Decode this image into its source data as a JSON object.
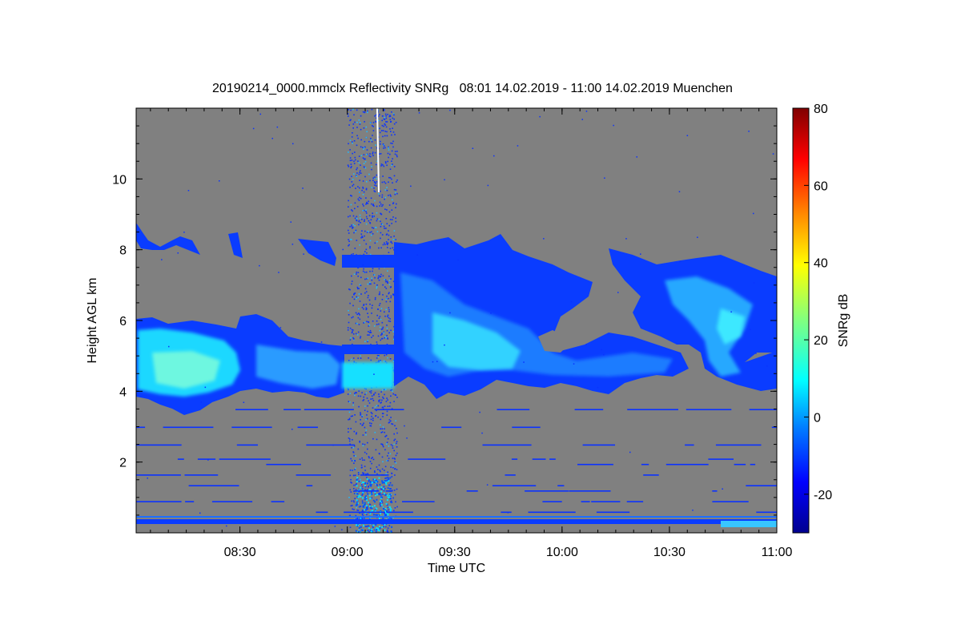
{
  "chart_data": {
    "type": "heatmap",
    "title": "20190214_0000.mmclx Reflectivity SNRg   08:01 14.02.2019 - 11:00 14.02.2019 Muenchen",
    "xlabel": "Time UTC",
    "ylabel": "Height AGL km",
    "colorbar_label": "SNRg dB",
    "x_range": [
      "08:01",
      "11:00"
    ],
    "y_range_km": [
      0,
      12
    ],
    "x_ticks": [
      "08:30",
      "09:00",
      "09:30",
      "10:00",
      "10:30",
      "11:00"
    ],
    "y_ticks": [
      "2",
      "4",
      "6",
      "8",
      "10"
    ],
    "colorbar_range_db": [
      -30,
      80
    ],
    "colorbar_ticks": [
      "-20",
      "0",
      "20",
      "40",
      "60",
      "80"
    ],
    "background_color": "#808080",
    "colormap": [
      "#00008f",
      "#0000ff",
      "#0080ff",
      "#00ffff",
      "#80ff80",
      "#ffff00",
      "#ff8000",
      "#ff0000",
      "#800000"
    ],
    "features": [
      {
        "name": "main cloud layer",
        "time_start": "08:01",
        "time_end": "11:00",
        "height_km": [
          3.5,
          6.2
        ]
      },
      {
        "name": "upper cloud",
        "time_start": "09:15",
        "time_end": "10:20",
        "height_km": [
          4.5,
          8.2
        ]
      },
      {
        "name": "upper cloud",
        "time_start": "10:25",
        "time_end": "11:00",
        "height_km": [
          4.2,
          7.8
        ]
      },
      {
        "name": "noise column",
        "time_start": "09:00",
        "time_end": "09:15",
        "height_km": [
          0,
          12
        ]
      }
    ]
  }
}
